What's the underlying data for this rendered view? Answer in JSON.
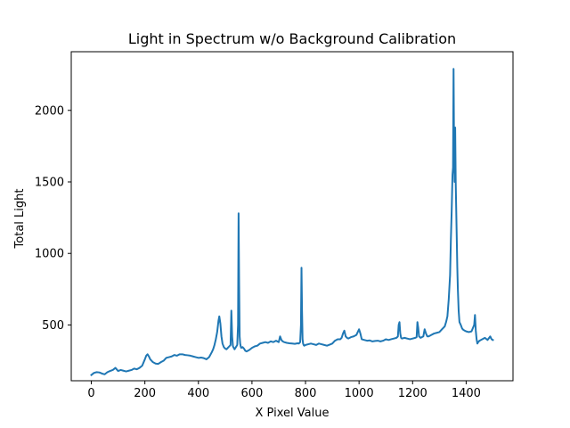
{
  "chart_data": {
    "type": "line",
    "title": "Light in Spectrum w/o Background Calibration",
    "xlabel": "X Pixel Value",
    "ylabel": "Total Light",
    "xlim": [
      -75,
      1575
    ],
    "ylim": [
      110,
      2410
    ],
    "xticks": [
      0,
      200,
      400,
      600,
      800,
      1000,
      1200,
      1400
    ],
    "xtick_labels": [
      "0",
      "200",
      "400",
      "600",
      "800",
      "1000",
      "1200",
      "1400"
    ],
    "yticks": [
      500,
      1000,
      1500,
      2000
    ],
    "ytick_labels": [
      "500",
      "1000",
      "1500",
      "2000"
    ],
    "grid": false,
    "legend": "none",
    "series": [
      {
        "color": "#1f77b4",
        "x": [
          0,
          10,
          20,
          30,
          40,
          50,
          60,
          70,
          80,
          90,
          100,
          110,
          120,
          130,
          140,
          150,
          160,
          170,
          180,
          190,
          200,
          205,
          210,
          215,
          220,
          230,
          240,
          250,
          260,
          270,
          280,
          290,
          300,
          310,
          320,
          330,
          340,
          350,
          360,
          370,
          380,
          390,
          400,
          410,
          420,
          430,
          440,
          450,
          455,
          460,
          465,
          470,
          475,
          478,
          482,
          486,
          490,
          495,
          500,
          505,
          510,
          515,
          520,
          523,
          526,
          529,
          532,
          535,
          540,
          545,
          548,
          550,
          552,
          554,
          556,
          558,
          560,
          565,
          570,
          575,
          580,
          590,
          600,
          610,
          620,
          630,
          640,
          650,
          660,
          670,
          680,
          690,
          700,
          705,
          710,
          715,
          720,
          730,
          740,
          750,
          760,
          770,
          775,
          780,
          783,
          785,
          787,
          789,
          791,
          793,
          795,
          800,
          810,
          820,
          830,
          840,
          850,
          860,
          870,
          880,
          890,
          900,
          910,
          920,
          930,
          935,
          940,
          945,
          950,
          955,
          960,
          970,
          980,
          990,
          995,
          1000,
          1005,
          1010,
          1020,
          1030,
          1040,
          1050,
          1060,
          1070,
          1080,
          1090,
          1100,
          1110,
          1120,
          1130,
          1140,
          1145,
          1148,
          1151,
          1154,
          1157,
          1160,
          1170,
          1180,
          1190,
          1200,
          1210,
          1215,
          1218,
          1221,
          1224,
          1230,
          1240,
          1245,
          1250,
          1255,
          1260,
          1270,
          1280,
          1290,
          1300,
          1310,
          1320,
          1325,
          1330,
          1335,
          1340,
          1343,
          1346,
          1349,
          1351,
          1353,
          1355,
          1357,
          1359,
          1361,
          1363,
          1365,
          1367,
          1369,
          1372,
          1375,
          1380,
          1385,
          1390,
          1395,
          1400,
          1410,
          1420,
          1430,
          1433,
          1436,
          1439,
          1442,
          1445,
          1450,
          1460,
          1470,
          1480,
          1490,
          1495,
          1500
        ],
        "y": [
          150,
          165,
          170,
          168,
          160,
          155,
          170,
          178,
          185,
          200,
          178,
          185,
          180,
          175,
          180,
          185,
          195,
          190,
          200,
          215,
          260,
          285,
          295,
          280,
          260,
          240,
          230,
          228,
          240,
          250,
          270,
          275,
          280,
          290,
          285,
          295,
          295,
          290,
          288,
          285,
          280,
          275,
          270,
          272,
          268,
          260,
          275,
          310,
          330,
          360,
          400,
          450,
          530,
          560,
          510,
          420,
          370,
          345,
          335,
          330,
          340,
          350,
          360,
          600,
          420,
          350,
          340,
          330,
          345,
          360,
          500,
          1280,
          800,
          420,
          370,
          350,
          340,
          345,
          335,
          320,
          315,
          325,
          340,
          350,
          355,
          370,
          375,
          380,
          375,
          385,
          380,
          390,
          380,
          420,
          395,
          385,
          380,
          375,
          372,
          370,
          368,
          372,
          370,
          380,
          500,
          900,
          600,
          400,
          370,
          360,
          355,
          360,
          365,
          370,
          365,
          360,
          370,
          365,
          360,
          355,
          362,
          370,
          390,
          400,
          400,
          410,
          440,
          460,
          420,
          410,
          405,
          415,
          420,
          430,
          450,
          470,
          440,
          400,
          395,
          390,
          392,
          385,
          388,
          390,
          385,
          390,
          400,
          395,
          400,
          405,
          410,
          420,
          500,
          520,
          440,
          410,
          405,
          410,
          405,
          400,
          405,
          410,
          415,
          520,
          480,
          420,
          410,
          420,
          470,
          440,
          420,
          420,
          430,
          440,
          445,
          450,
          470,
          490,
          520,
          560,
          680,
          850,
          1100,
          1300,
          1550,
          1600,
          2290,
          1700,
          1500,
          1880,
          1500,
          1300,
          1100,
          900,
          750,
          600,
          520,
          500,
          475,
          465,
          460,
          455,
          450,
          455,
          500,
          570,
          460,
          400,
          370,
          380,
          390,
          400,
          410,
          395,
          420,
          400,
          395
        ]
      }
    ]
  }
}
